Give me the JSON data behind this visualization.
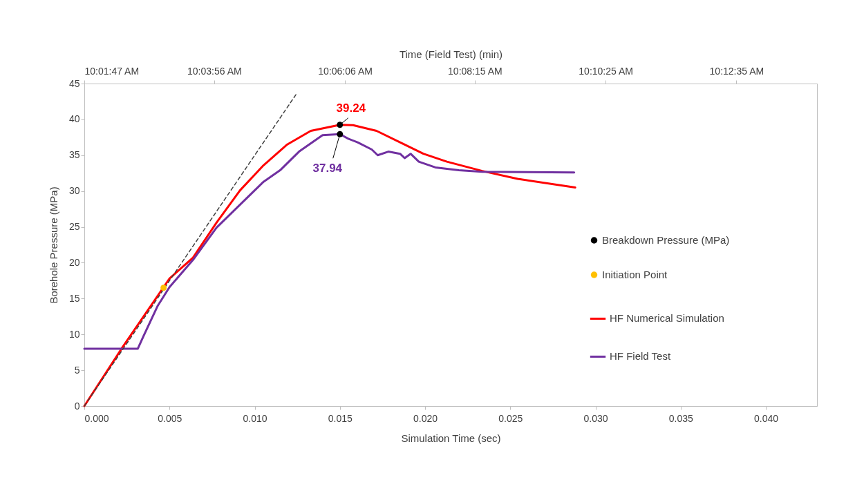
{
  "chart_data": {
    "type": "line",
    "xlabel": "Simulation Time (sec)",
    "ylabel": "Borehole Pressure (MPa)",
    "x2label": "Time (Field Test) (min)",
    "xlim": [
      0,
      0.043
    ],
    "ylim": [
      0,
      45
    ],
    "xticks": [
      {
        "value": 0,
        "label": "0.000"
      },
      {
        "value": 0.005,
        "label": "0.005"
      },
      {
        "value": 0.01,
        "label": "0.010"
      },
      {
        "value": 0.015,
        "label": "0.015"
      },
      {
        "value": 0.02,
        "label": "0.020"
      },
      {
        "value": 0.025,
        "label": "0.025"
      },
      {
        "value": 0.03,
        "label": "0.030"
      },
      {
        "value": 0.035,
        "label": "0.035"
      },
      {
        "value": 0.04,
        "label": "0.040"
      }
    ],
    "yticks": [
      0,
      5,
      10,
      15,
      20,
      25,
      30,
      35,
      40,
      45
    ],
    "x2lim": [
      10.02972,
      10.23197
    ],
    "x2ticks": [
      {
        "value": 10.02972,
        "label": "10:01:47 AM"
      },
      {
        "value": 10.06556,
        "label": "10:03:56 AM"
      },
      {
        "value": 10.10167,
        "label": "10:06:06 AM"
      },
      {
        "value": 10.1375,
        "label": "10:08:15 AM"
      },
      {
        "value": 10.17361,
        "label": "10:10:25 AM"
      },
      {
        "value": 10.20972,
        "label": "10:12:35 AM"
      }
    ],
    "grid": false,
    "legend": "right",
    "series": [
      {
        "name": "HF Numerical Simulation",
        "color": "#ff0000",
        "x": [
          0,
          0.00224,
          0.005,
          0.00638,
          0.00776,
          0.00914,
          0.01052,
          0.01191,
          0.01329,
          0.015,
          0.01577,
          0.01715,
          0.01853,
          0.0199,
          0.02128,
          0.02336,
          0.02543,
          0.02881
        ],
        "values": [
          0,
          8.2,
          17.8,
          20.7,
          25.6,
          30.1,
          33.6,
          36.5,
          38.4,
          39.24,
          39.2,
          38.4,
          36.8,
          35.2,
          34.1,
          32.8,
          31.7,
          30.5
        ]
      },
      {
        "name": "HF Field Test",
        "color": "#7030a0",
        "x": [
          0,
          0.00314,
          0.00348,
          0.00431,
          0.005,
          0.00638,
          0.00776,
          0.00914,
          0.01052,
          0.01149,
          0.0126,
          0.01398,
          0.015,
          0.01549,
          0.01604,
          0.01687,
          0.01722,
          0.01784,
          0.01853,
          0.0188,
          0.01915,
          0.01963,
          0.0206,
          0.02198,
          0.02336,
          0.02875
        ],
        "values": [
          8,
          8,
          9.8,
          14,
          16.6,
          20.4,
          24.9,
          28.1,
          31.3,
          32.9,
          35.5,
          37.8,
          37.94,
          37.3,
          36.8,
          35.8,
          35,
          35.5,
          35.2,
          34.6,
          35.2,
          34.1,
          33.3,
          32.9,
          32.7,
          32.6
        ]
      },
      {
        "color": "#404040",
        "line_style": "dashed",
        "x": [
          0,
          0.01246
        ],
        "values": [
          0,
          43.6
        ]
      },
      {
        "name": "Breakdown Pressure (MPa)",
        "type": "scatter",
        "color": "#000000",
        "x": [
          0.015,
          0.015
        ],
        "values": [
          39.24,
          37.94
        ]
      },
      {
        "name": "Initiation Point",
        "type": "scatter",
        "color": "#ffc000",
        "x": [
          0.00465
        ],
        "values": [
          16.5
        ]
      }
    ],
    "annotations": [
      {
        "text": "39.24",
        "x": 0.015,
        "y": 39.24
      },
      {
        "text": "37.94",
        "x": 0.015,
        "y": 37.94
      }
    ]
  }
}
